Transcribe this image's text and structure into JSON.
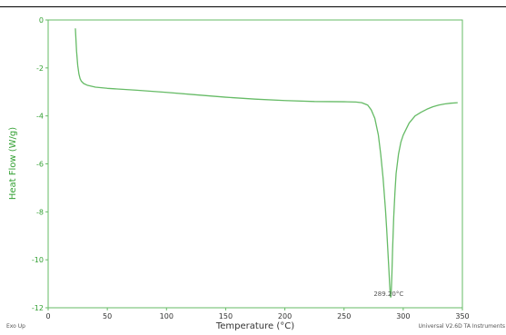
{
  "chart_data": {
    "type": "line",
    "xlabel": "Temperature (°C)",
    "ylabel": "Heat Flow (W/g)",
    "xlim": [
      0,
      350
    ],
    "ylim": [
      -12,
      0
    ],
    "x_ticks": [
      0,
      50,
      100,
      150,
      200,
      250,
      300,
      350
    ],
    "y_ticks": [
      0,
      -2,
      -4,
      -6,
      -8,
      -10,
      -12
    ],
    "grid": false,
    "series": [
      {
        "color": "#66bb66",
        "x": [
          23,
          24,
          25,
          26,
          27,
          28,
          30,
          33,
          40,
          50,
          75,
          100,
          125,
          150,
          175,
          200,
          225,
          250,
          260,
          265,
          270,
          273,
          276,
          279,
          281,
          283,
          285,
          286,
          287,
          288,
          288.5,
          289,
          289.3,
          289.6,
          290,
          290.5,
          291,
          292,
          293,
          294,
          296,
          298,
          300,
          305,
          310,
          315,
          320,
          325,
          330,
          335,
          340,
          346
        ],
        "y": [
          -0.35,
          -1.3,
          -1.9,
          -2.25,
          -2.45,
          -2.55,
          -2.65,
          -2.72,
          -2.8,
          -2.85,
          -2.93,
          -3.02,
          -3.12,
          -3.22,
          -3.3,
          -3.36,
          -3.4,
          -3.41,
          -3.42,
          -3.45,
          -3.55,
          -3.75,
          -4.1,
          -4.8,
          -5.6,
          -6.6,
          -7.9,
          -8.7,
          -9.6,
          -10.5,
          -11.0,
          -11.4,
          -11.55,
          -11.55,
          -11.2,
          -10.5,
          -9.6,
          -8.2,
          -7.2,
          -6.4,
          -5.6,
          -5.1,
          -4.8,
          -4.3,
          -4.0,
          -3.85,
          -3.72,
          -3.62,
          -3.55,
          -3.5,
          -3.47,
          -3.45
        ]
      }
    ],
    "annotations": [
      {
        "text": "289.20°C",
        "x": 289.2,
        "y": -11.55
      }
    ],
    "footer_left": "Exo Up",
    "footer_right": "Universal V2.6D TA Instruments"
  }
}
